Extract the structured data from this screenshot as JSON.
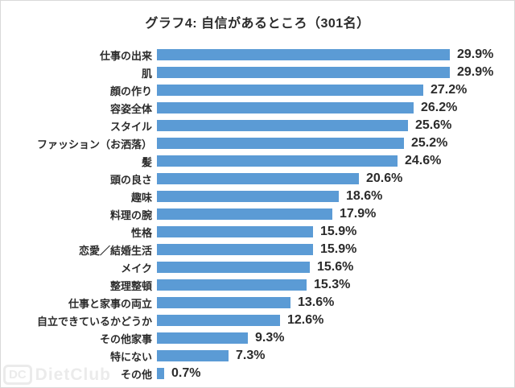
{
  "page": {
    "background": "#ffffff",
    "border_color": "#d9d9d9",
    "text_color": "#2b2b2b"
  },
  "chart_data": {
    "type": "bar",
    "orientation": "horizontal",
    "title": "グラフ4: 自信があるところ（301名）",
    "categories": [
      "仕事の出来",
      "肌",
      "顔の作り",
      "容姿全体",
      "スタイル",
      "ファッション（お洒落）",
      "髪",
      "頭の良さ",
      "趣味",
      "料理の腕",
      "性格",
      "恋愛／結婚生活",
      "メイク",
      "整理整頓",
      "仕事と家事の両立",
      "自立できているかどうか",
      "その他家事",
      "特にない",
      "その他"
    ],
    "values": [
      29.9,
      29.9,
      27.2,
      26.2,
      25.6,
      25.2,
      24.6,
      20.6,
      18.6,
      17.9,
      15.9,
      15.9,
      15.6,
      15.3,
      13.6,
      12.6,
      9.3,
      7.3,
      0.7
    ],
    "value_suffix": "%",
    "bar_color": "#5B9BD5",
    "xlim": [
      0,
      35
    ],
    "grid": false,
    "legend": false,
    "data_labels": true,
    "xlabel": "",
    "ylabel": ""
  },
  "watermark": {
    "badge": "DC",
    "label": "DietClub"
  }
}
